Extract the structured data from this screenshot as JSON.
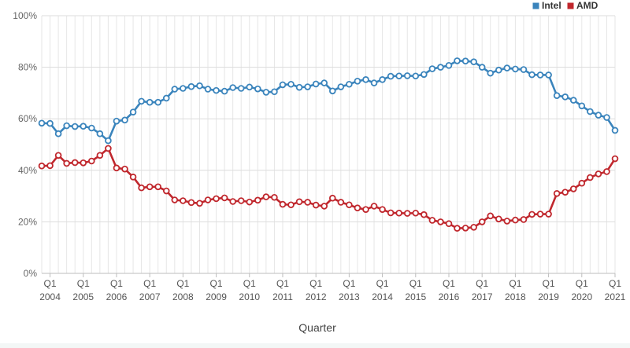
{
  "chart_data": {
    "type": "line",
    "xlabel": "Quarter",
    "ylabel": "",
    "ylim": [
      0,
      100
    ],
    "yticks": [
      "0%",
      "20%",
      "40%",
      "60%",
      "80%",
      "100%"
    ],
    "grid": true,
    "legend_position": "top-right",
    "x_start": {
      "year": 2003,
      "quarter": 4
    },
    "x_ticks": [
      {
        "q": "Q1",
        "year": "2004"
      },
      {
        "q": "Q1",
        "year": "2005"
      },
      {
        "q": "Q1",
        "year": "2006"
      },
      {
        "q": "Q1",
        "year": "2007"
      },
      {
        "q": "Q1",
        "year": "2008"
      },
      {
        "q": "Q1",
        "year": "2009"
      },
      {
        "q": "Q1",
        "year": "2010"
      },
      {
        "q": "Q1",
        "year": "2011"
      },
      {
        "q": "Q1",
        "year": "2012"
      },
      {
        "q": "Q1",
        "year": "2013"
      },
      {
        "q": "Q1",
        "year": "2014"
      },
      {
        "q": "Q1",
        "year": "2015"
      },
      {
        "q": "Q1",
        "year": "2016"
      },
      {
        "q": "Q1",
        "year": "2017"
      },
      {
        "q": "Q1",
        "year": "2018"
      },
      {
        "q": "Q1",
        "year": "2019"
      },
      {
        "q": "Q1",
        "year": "2020"
      },
      {
        "q": "Q1",
        "year": "2021"
      }
    ],
    "series": [
      {
        "name": "Intel",
        "color": "#3a84bc",
        "values": [
          58.3,
          58.2,
          54.2,
          57.3,
          57.0,
          57.1,
          56.4,
          54.2,
          51.5,
          59.1,
          59.5,
          62.6,
          66.8,
          66.4,
          66.4,
          68.0,
          71.5,
          71.8,
          72.5,
          72.8,
          71.5,
          71.0,
          70.7,
          72.1,
          71.8,
          72.3,
          71.6,
          70.3,
          70.5,
          73.2,
          73.4,
          72.2,
          72.4,
          73.5,
          73.9,
          70.8,
          72.4,
          73.4,
          74.6,
          75.2,
          73.9,
          75.2,
          76.5,
          76.6,
          76.7,
          76.6,
          77.2,
          79.4,
          80.0,
          80.7,
          82.5,
          82.4,
          82.1,
          80.0,
          77.7,
          78.9,
          79.7,
          79.3,
          79.1,
          77.1,
          77.0,
          77.0,
          69.0,
          68.5,
          67.2,
          65.0,
          62.8,
          61.4,
          60.5,
          55.5
        ]
      },
      {
        "name": "AMD",
        "color": "#c0272d",
        "values": [
          41.7,
          41.8,
          45.8,
          42.7,
          43.0,
          42.9,
          43.6,
          45.8,
          48.5,
          40.9,
          40.5,
          37.4,
          33.2,
          33.6,
          33.6,
          32.0,
          28.5,
          28.2,
          27.5,
          27.2,
          28.5,
          29.0,
          29.3,
          27.9,
          28.2,
          27.7,
          28.4,
          29.7,
          29.5,
          26.8,
          26.6,
          27.8,
          27.6,
          26.5,
          26.1,
          29.2,
          27.6,
          26.6,
          25.4,
          24.8,
          26.1,
          24.8,
          23.5,
          23.4,
          23.3,
          23.4,
          22.8,
          20.6,
          20.0,
          19.3,
          17.5,
          17.6,
          17.9,
          20.0,
          22.3,
          21.1,
          20.3,
          20.7,
          20.9,
          22.9,
          23.0,
          23.0,
          31.0,
          31.5,
          32.8,
          35.0,
          37.2,
          38.6,
          39.5,
          44.5
        ]
      }
    ]
  }
}
